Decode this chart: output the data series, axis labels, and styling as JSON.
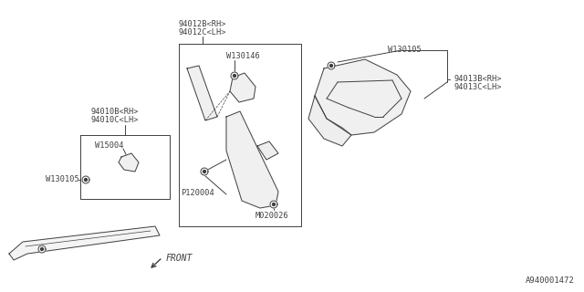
{
  "bg_color": "#ffffff",
  "line_color": "#404040",
  "diagram_id": "A940001472",
  "labels": {
    "part1_a": "94012B<RH>",
    "part1_b": "94012C<LH>",
    "part1_w": "W130146",
    "part1_p": "P120004",
    "part1_m": "M020026",
    "part2_a": "94010B<RH>",
    "part2_b": "94010C<LH>",
    "part2_w1": "W15004",
    "part2_w2": "W130105",
    "part3_a": "94013B<RH>",
    "part3_b": "94013C<LH>",
    "part3_w": "W130105",
    "front": "FRONT"
  }
}
